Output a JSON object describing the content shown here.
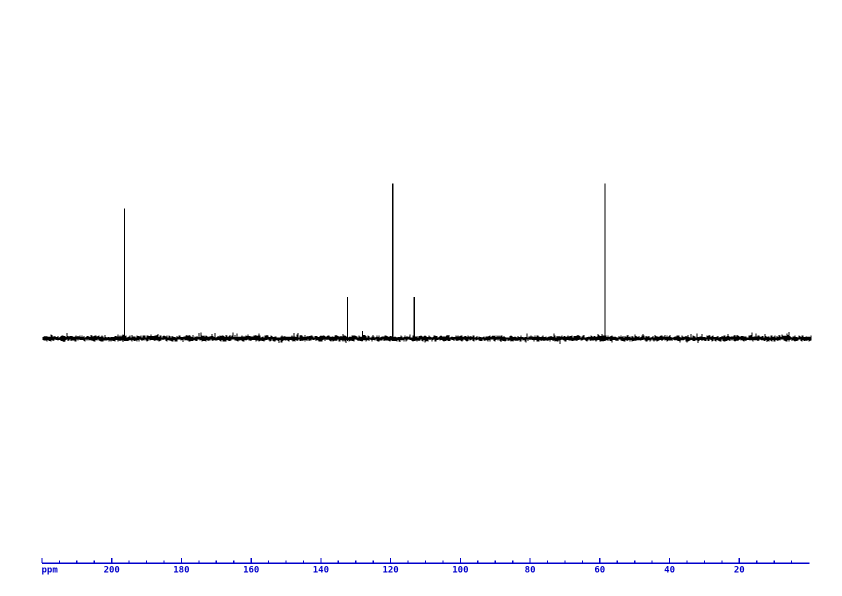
{
  "colors": {
    "background": "#ffffff",
    "trace": "#000000",
    "axis": "#0000cc"
  },
  "chart_data": {
    "type": "line",
    "kind": "13C-NMR-spectrum",
    "title": "",
    "xlabel": "ppm",
    "ylabel": "",
    "x_axis": {
      "unit_label": "ppm",
      "range_ppm": [
        220,
        0
      ],
      "direction": "reversed",
      "major_tick_interval_ppm": 20,
      "minor_tick_interval_ppm": 5,
      "labeled_tick_values_ppm": [
        200,
        180,
        160,
        140,
        120,
        100,
        80,
        60,
        40,
        20
      ],
      "tick_labels": [
        "200",
        "180",
        "160",
        "140",
        "120",
        "100",
        "80",
        "60",
        "40",
        "20"
      ]
    },
    "y_axis": {
      "visible": false,
      "range_rel": [
        0,
        1
      ]
    },
    "peaks": [
      {
        "ppm": 196.3,
        "rel_intensity": 0.84
      },
      {
        "ppm": 132.4,
        "rel_intensity": 0.27
      },
      {
        "ppm": 128.1,
        "rel_intensity": 0.05
      },
      {
        "ppm": 119.4,
        "rel_intensity": 1.0
      },
      {
        "ppm": 113.2,
        "rel_intensity": 0.27
      },
      {
        "ppm": 58.5,
        "rel_intensity": 1.0
      }
    ],
    "baseline": {
      "noise_rel_intensity": 0.02,
      "description": "dense ragged black noise band along full spectral width"
    },
    "legend": {
      "visible": false
    },
    "grid": {
      "visible": false
    }
  }
}
